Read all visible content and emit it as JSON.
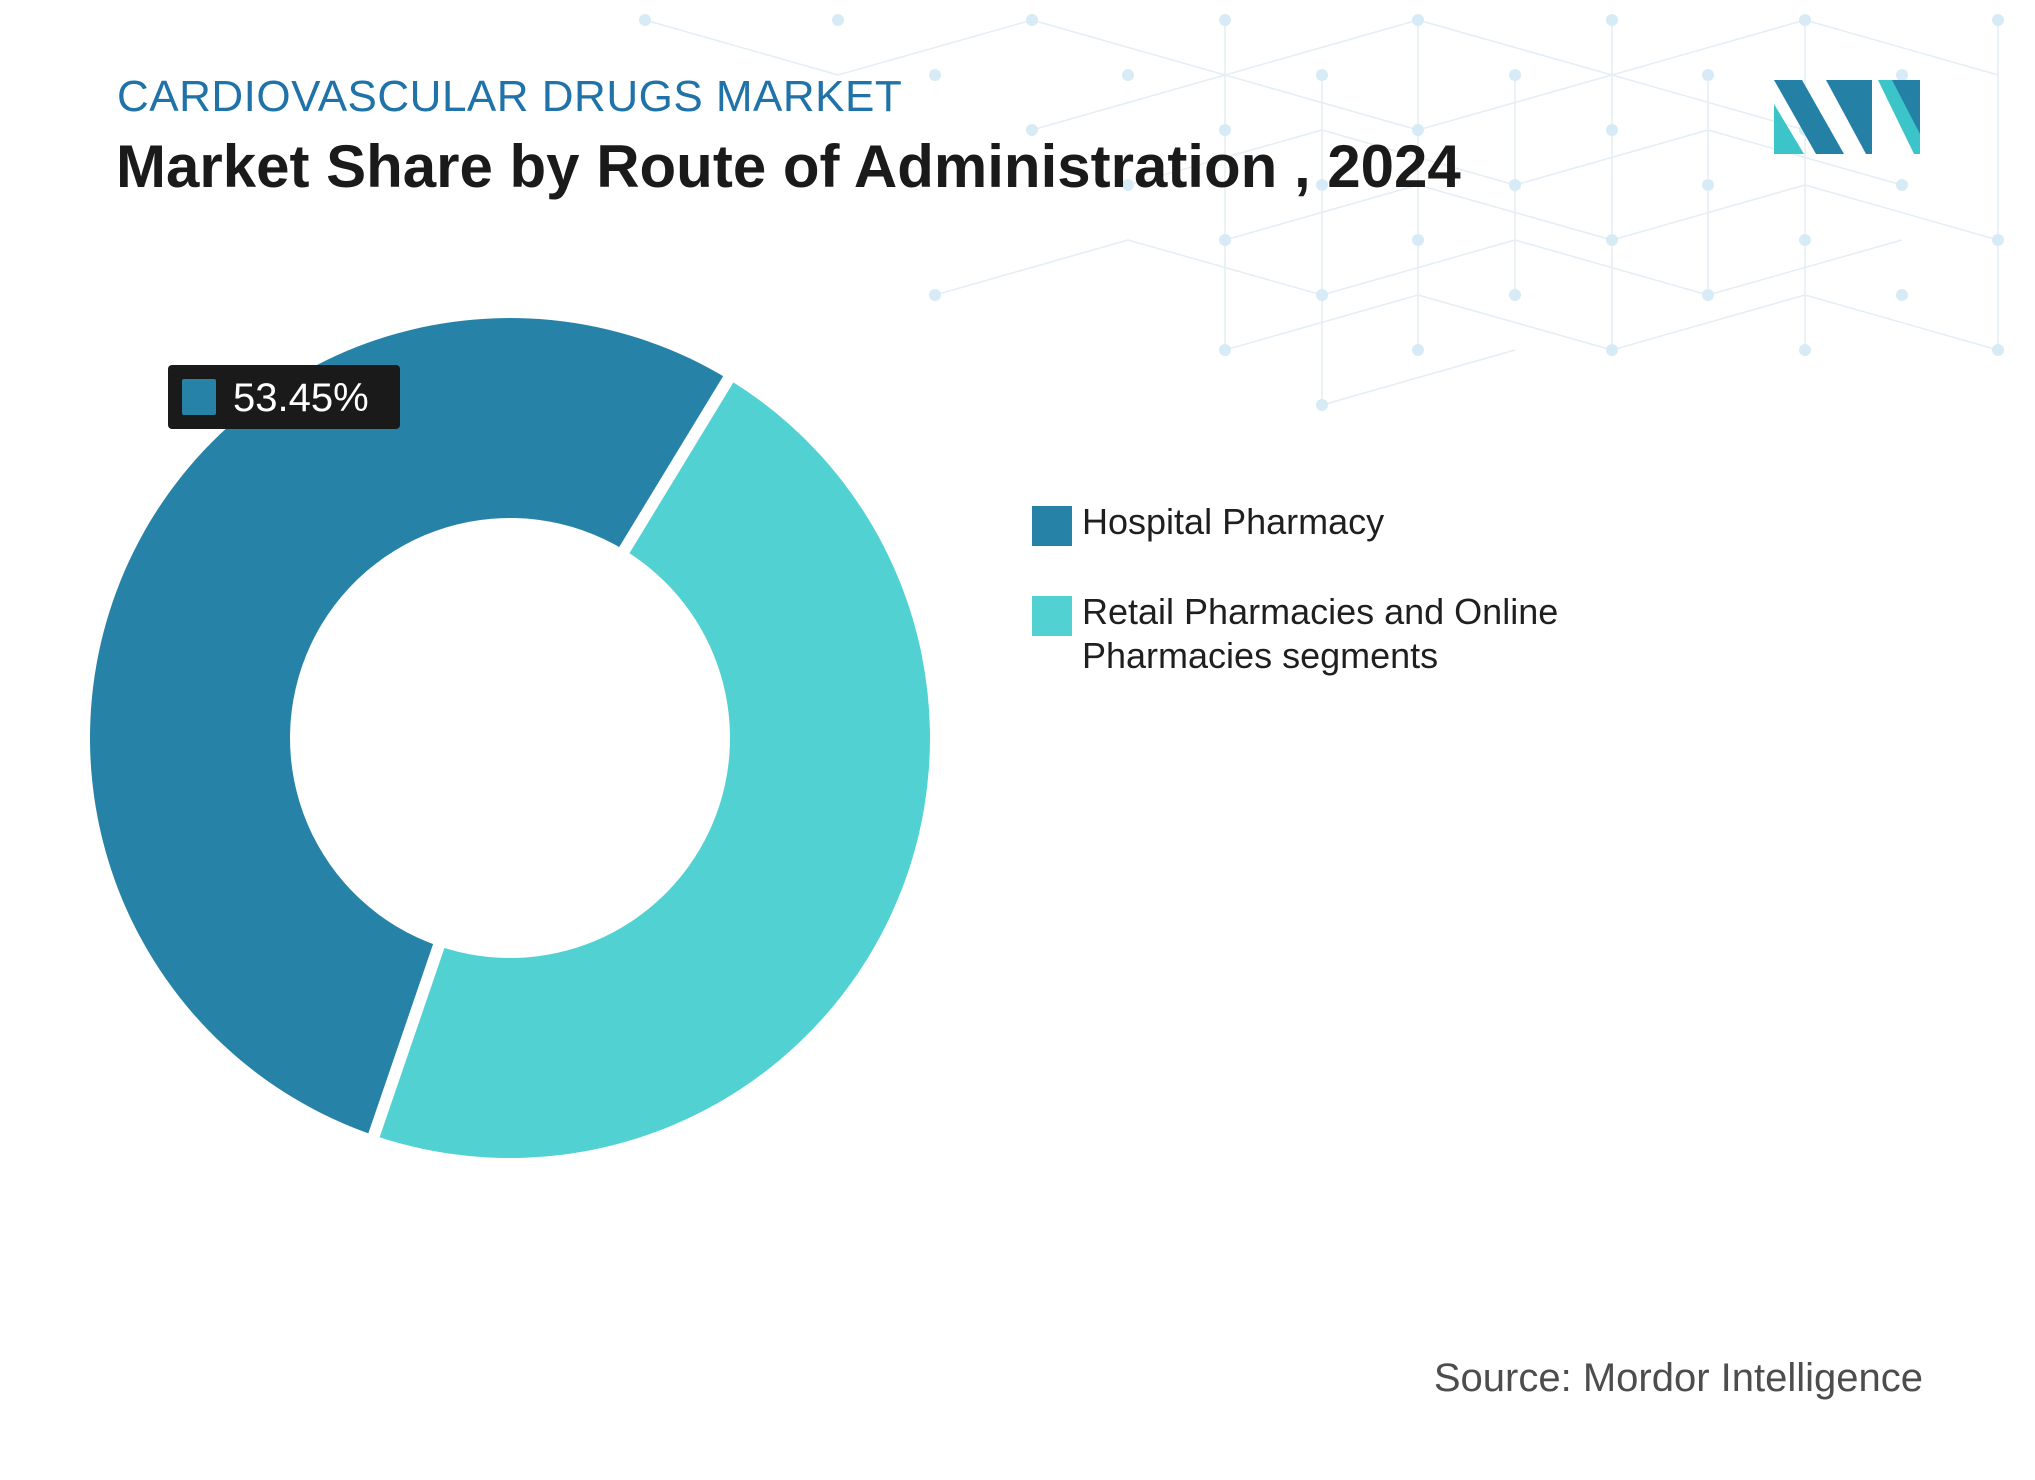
{
  "header": {
    "subtitle": "CARDIOVASCULAR DRUGS MARKET",
    "title": "Market Share by Route of Administration , 2024"
  },
  "brand": {
    "logo_icon": "mordor-intelligence-logo-icon",
    "dark_color": "#2580a6",
    "light_color": "#3cc5c8"
  },
  "chart_data": {
    "type": "pie",
    "title": "Market Share by Route of Administration , 2024",
    "donut": true,
    "legend_position": "right",
    "slices": [
      {
        "name": "Hospital Pharmacy",
        "value": 53.45,
        "color": "#2782a8",
        "label": "53.45%"
      },
      {
        "name": "Retail Pharmacies and Online Pharmacies segments",
        "value": 46.55,
        "color": "#52d1d3"
      }
    ]
  },
  "source": "Source: Mordor Intelligence"
}
